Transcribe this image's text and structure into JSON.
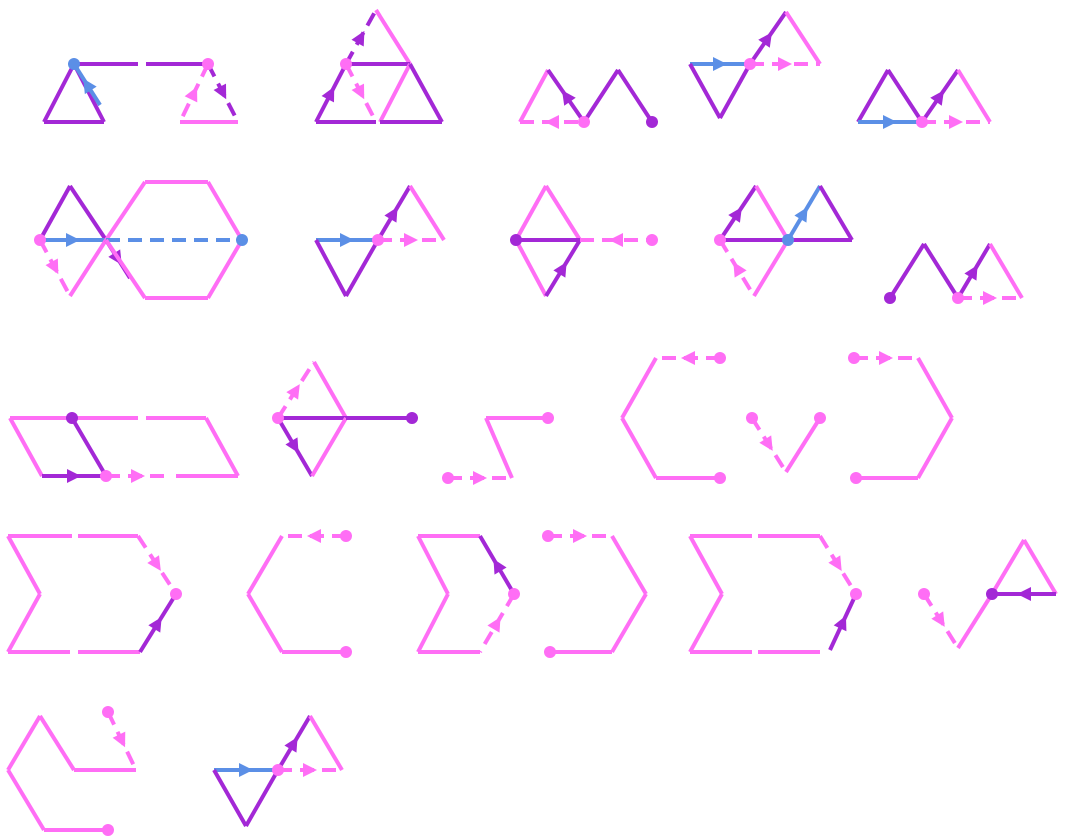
{
  "colors": {
    "purple": "#a328d6",
    "pink": "#ff6ef5",
    "blue": "#5b8fe6",
    "background": "#ffffff"
  },
  "diagrams": [
    "chain-1",
    "chain-2",
    "chain-3",
    "chain-4",
    "chain-5",
    "chain-6",
    "chain-7",
    "chain-8",
    "chain-9",
    "chain-10",
    "chain-11",
    "chain-12",
    "chain-13",
    "chain-14",
    "chain-15",
    "chain-16",
    "chain-17",
    "chain-18",
    "chain-19",
    "chain-20",
    "chain-21"
  ]
}
